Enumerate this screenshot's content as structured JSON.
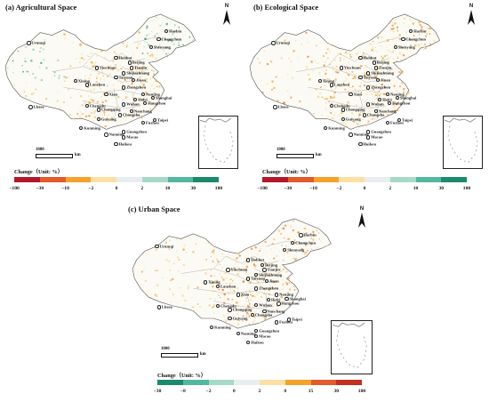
{
  "panels": [
    {
      "title": "(a) Agricultural Space",
      "scale_label": "1000",
      "scale_unit": "km",
      "legend_title": "Change（Unit: %）",
      "legend_ticks": [
        "−100",
        "−30",
        "−10",
        "−2",
        "0",
        "2",
        "10",
        "30",
        "100"
      ],
      "legend_colors": [
        "#b2182b",
        "#e35a2b",
        "#f4a32a",
        "#fce0a3",
        "#e8eef0",
        "#a7d9c9",
        "#54b89f",
        "#1c8a6c",
        "#0b5a45"
      ],
      "accent": "#2a9d7c"
    },
    {
      "title": "(b) Ecological Space",
      "scale_label": "1000",
      "scale_unit": "km",
      "legend_title": "Change（Unit: %）",
      "legend_ticks": [
        "−100",
        "−30",
        "−10",
        "−2",
        "0",
        "2",
        "10",
        "30",
        "100"
      ],
      "legend_colors": [
        "#b2182b",
        "#e35a2b",
        "#f4a32a",
        "#fce0a3",
        "#e8eef0",
        "#a7d9c9",
        "#54b89f",
        "#1c8a6c",
        "#0b5a45"
      ],
      "accent": "#e07a1a"
    },
    {
      "title": "(c) Urban Space",
      "scale_label": "1000",
      "scale_unit": "km",
      "legend_title": "Change（Unit: %）",
      "legend_ticks": [
        "−30",
        "−8",
        "−2",
        "0",
        "2",
        "8",
        "15",
        "30",
        "100"
      ],
      "legend_colors": [
        "#1c8a6c",
        "#54b89f",
        "#a7d9c9",
        "#e8eef0",
        "#fce0a3",
        "#f4a32a",
        "#e35a2b",
        "#c2301f",
        "#8e0f16"
      ],
      "accent": "#e8901f"
    }
  ],
  "north_label": "N",
  "cities": [
    "Harbin",
    "Changchun",
    "Shenyang",
    "Urumqi",
    "Hohhot",
    "Beijing",
    "Tianjin",
    "Yinchuan",
    "Shijiazhuang",
    "Taiyuan",
    "Jinan",
    "Xining",
    "Lanzhou",
    "Zhengzhou",
    "Nanjing",
    "Shanghai",
    "Xian",
    "Hefei",
    "Hangzhou",
    "Lhasa",
    "Chengdu",
    "Wuhan",
    "Chongqing",
    "Nanchang",
    "Changsha",
    "Taipei",
    "Guiyang",
    "Fuzhou",
    "Kunming",
    "Nanning",
    "Guangzhou",
    "Macao",
    "Haikou"
  ]
}
